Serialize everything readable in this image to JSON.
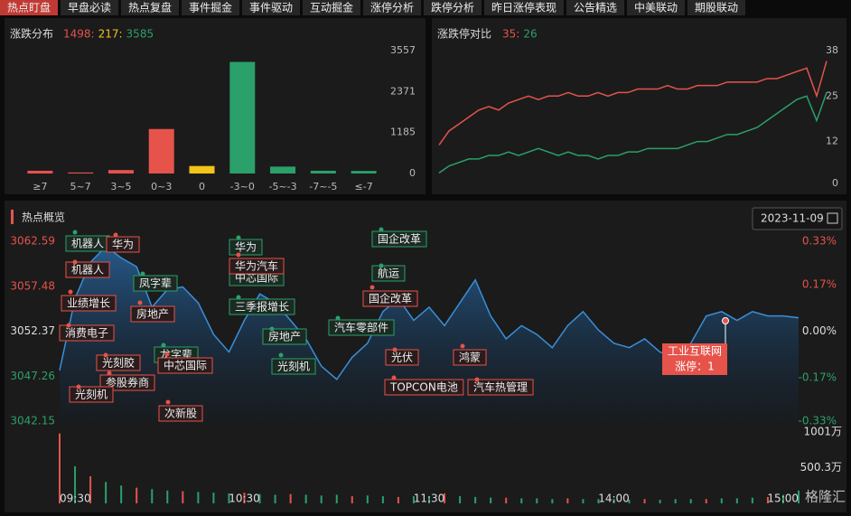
{
  "tabs": [
    "热点盯盘",
    "早盘必读",
    "热点复盘",
    "事件掘金",
    "事件驱动",
    "互动掘金",
    "涨停分析",
    "跌停分析",
    "昨日涨停表现",
    "公告精选",
    "中美联动",
    "期股联动"
  ],
  "chart_data": [
    {
      "type": "bar",
      "title": "涨跌分布",
      "summary": [
        "1498:",
        "217:",
        "3585"
      ],
      "categories": [
        "≥7",
        "5~7",
        "3~5",
        "0~3",
        "0",
        "-3~0",
        "-5~-3",
        "-7~-5",
        "≤-7"
      ],
      "values": [
        80,
        30,
        100,
        1288,
        217,
        3230,
        200,
        80,
        75
      ],
      "colors": [
        "#e5534b",
        "#e5534b",
        "#e5534b",
        "#e5534b",
        "#f0c419",
        "#2ba06a",
        "#2ba06a",
        "#2ba06a",
        "#2ba06a"
      ],
      "ylim": [
        0,
        3557
      ],
      "yticks": [
        0,
        1185,
        2371,
        3557
      ]
    },
    {
      "type": "line",
      "title": "涨跌停对比",
      "summary": [
        "35:",
        "26"
      ],
      "series": [
        {
          "color": "#e5534b",
          "values": [
            11,
            15,
            17,
            19,
            21,
            22,
            21,
            23,
            24,
            25,
            24,
            25,
            25,
            26,
            25,
            25,
            26,
            25,
            26,
            26,
            27,
            27,
            27,
            28,
            27,
            27,
            28,
            28,
            28,
            29,
            29,
            29,
            29,
            30,
            30,
            31,
            32,
            33,
            25,
            35
          ]
        },
        {
          "color": "#2ba06a",
          "values": [
            3,
            5,
            6,
            7,
            7,
            8,
            8,
            9,
            8,
            9,
            10,
            9,
            8,
            9,
            8,
            8,
            7,
            8,
            8,
            9,
            9,
            10,
            10,
            10,
            10,
            11,
            12,
            12,
            13,
            14,
            14,
            15,
            16,
            18,
            20,
            22,
            24,
            25,
            18,
            26
          ]
        }
      ],
      "ylim": [
        0,
        38
      ],
      "yticks": [
        0,
        12,
        25,
        38
      ]
    },
    {
      "type": "area",
      "title": "热点概览",
      "date": "2023-11-09",
      "color": "#3a8fd9",
      "x": [
        0,
        5,
        10,
        15,
        20,
        25,
        30,
        35,
        40,
        45,
        50,
        55,
        60,
        65,
        70,
        75,
        80,
        85,
        90,
        95,
        100,
        105,
        110,
        115,
        120,
        125,
        130,
        135,
        140,
        145,
        150,
        155,
        160,
        165,
        170,
        175,
        180,
        185,
        190,
        195,
        200,
        205,
        210,
        215,
        220,
        225,
        230,
        235,
        240
      ],
      "values": [
        3047.9,
        3056.1,
        3060.2,
        3062.0,
        3060.7,
        3059.7,
        3055.1,
        3057.1,
        3057.4,
        3055.6,
        3052.0,
        3050.0,
        3053.6,
        3056.6,
        3055.6,
        3053.6,
        3051.5,
        3048.4,
        3046.9,
        3049.4,
        3051.0,
        3054.6,
        3056.1,
        3053.6,
        3055.1,
        3053.0,
        3055.6,
        3058.2,
        3054.1,
        3051.5,
        3053.0,
        3052.0,
        3050.5,
        3053.0,
        3054.6,
        3052.5,
        3051.0,
        3050.5,
        3051.5,
        3050.0,
        3049.4,
        3051.0,
        3054.1,
        3054.6,
        3053.6,
        3054.6,
        3054.1,
        3054.1,
        3053.9
      ],
      "xlim": [
        0,
        240
      ],
      "xticks": [
        {
          "value": 0,
          "label": "09:30"
        },
        {
          "value": 60,
          "label": "10:30"
        },
        {
          "value": 120,
          "label": "11:30"
        },
        {
          "value": 180,
          "label": "14:00"
        },
        {
          "value": 240,
          "label": "15:00"
        }
      ],
      "ylim": [
        3042.15,
        3062.59
      ],
      "yticks": [
        3062.59,
        3057.48,
        3052.37,
        3047.26,
        3042.15
      ],
      "y2lim": [
        -0.33,
        0.33
      ],
      "y2ticks": [
        {
          "value": 0.33,
          "label": "0.33%"
        },
        {
          "value": 0.17,
          "label": "0.17%"
        },
        {
          "value": 0,
          "label": "0.00%"
        },
        {
          "value": -0.17,
          "label": "-0.17%"
        },
        {
          "value": -0.33,
          "label": "-0.33%"
        }
      ],
      "volume": {
        "values": [
          980,
          520,
          380,
          300,
          250,
          220,
          200,
          180,
          170,
          160,
          150,
          140,
          150,
          130,
          120,
          130,
          120,
          110,
          120,
          100,
          110,
          100,
          90,
          100,
          90,
          140,
          100,
          90,
          80,
          80,
          70,
          70,
          60,
          70,
          60,
          60,
          60,
          50,
          60,
          50,
          60,
          60,
          60,
          70,
          70,
          80,
          90,
          120,
          180
        ],
        "colors": [
          "#e5534b",
          "#2ba06a",
          "#e5534b",
          "#2ba06a",
          "#2ba06a",
          "#e5534b",
          "#2ba06a",
          "#2ba06a",
          "#e5534b",
          "#2ba06a",
          "#2ba06a",
          "#2ba06a",
          "#e5534b",
          "#2ba06a",
          "#2ba06a",
          "#e5534b",
          "#2ba06a",
          "#2ba06a",
          "#2ba06a",
          "#e5534b",
          "#2ba06a",
          "#2ba06a",
          "#e5534b",
          "#2ba06a",
          "#2ba06a",
          "#e5534b",
          "#2ba06a",
          "#2ba06a",
          "#2ba06a",
          "#e5534b",
          "#2ba06a",
          "#2ba06a",
          "#2ba06a",
          "#e5534b",
          "#2ba06a",
          "#2ba06a",
          "#2ba06a",
          "#2ba06a",
          "#e5534b",
          "#2ba06a",
          "#2ba06a",
          "#2ba06a",
          "#e5534b",
          "#2ba06a",
          "#2ba06a",
          "#2ba06a",
          "#e5534b",
          "#2ba06a",
          "#2ba06a"
        ],
        "ylim": [
          0,
          1001
        ],
        "yticks": [
          {
            "value": 500.3,
            "label": "500.3万"
          },
          {
            "value": 1001,
            "label": "1001万"
          }
        ]
      },
      "annotations": [
        {
          "label": "机器人",
          "style": "green"
        },
        {
          "label": "华为",
          "style": "red"
        },
        {
          "label": "机器人",
          "style": "red"
        },
        {
          "label": "业绩增长",
          "style": "red"
        },
        {
          "label": "凤字辈",
          "style": "green"
        },
        {
          "label": "消费电子",
          "style": "red"
        },
        {
          "label": "房地产",
          "style": "red"
        },
        {
          "label": "龙字辈",
          "style": "green"
        },
        {
          "label": "光刻胶",
          "style": "red"
        },
        {
          "label": "中芯国际",
          "style": "red"
        },
        {
          "label": "参股券商",
          "style": "red"
        },
        {
          "label": "光刻机",
          "style": "red"
        },
        {
          "label": "次新股",
          "style": "red"
        },
        {
          "label": "华为",
          "style": "green"
        },
        {
          "label": "中芯国际",
          "style": "green"
        },
        {
          "label": "华为汽车",
          "style": "red"
        },
        {
          "label": "三季报增长",
          "style": "green"
        },
        {
          "label": "房地产",
          "style": "green"
        },
        {
          "label": "光刻机",
          "style": "green"
        },
        {
          "label": "国企改革",
          "style": "green"
        },
        {
          "label": "航运",
          "style": "green"
        },
        {
          "label": "国企改革",
          "style": "red"
        },
        {
          "label": "汽车零部件",
          "style": "green"
        },
        {
          "label": "光伏",
          "style": "red"
        },
        {
          "label": "鸿蒙",
          "style": "red"
        },
        {
          "label": "TOPCON电池",
          "style": "red"
        },
        {
          "label": "汽车热管理",
          "style": "red"
        }
      ],
      "tooltip": {
        "name": "工业互联网",
        "detail": "涨停：1"
      }
    }
  ],
  "watermark": "格隆汇"
}
